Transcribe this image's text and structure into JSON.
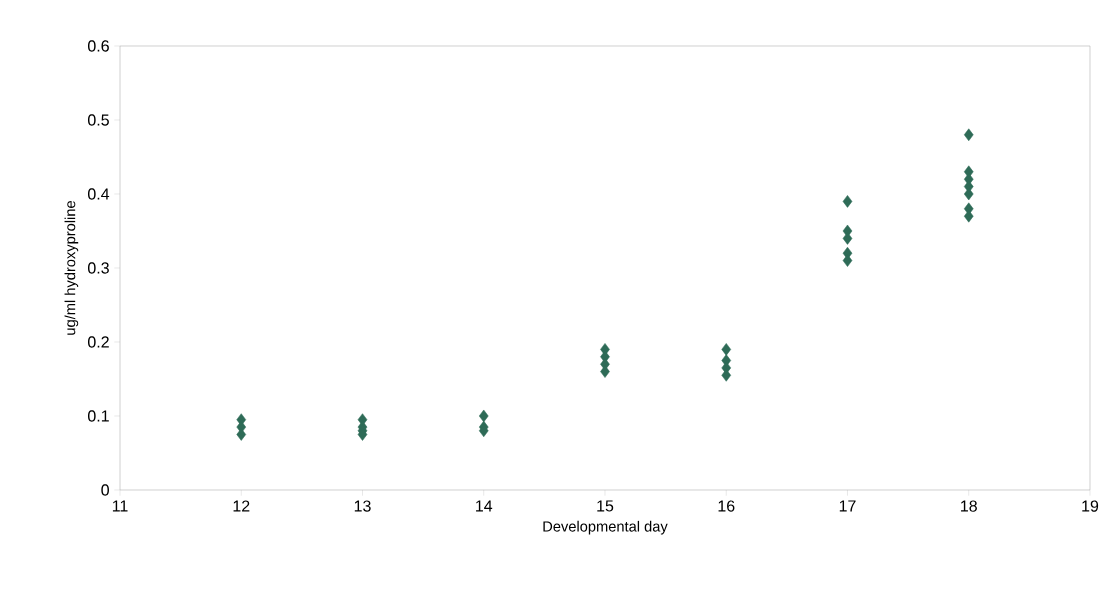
{
  "chart_data": {
    "type": "scatter",
    "xlabel": "Developmental day",
    "ylabel": "ug/ml hydroxyproline",
    "marker": "diamond",
    "grid": false,
    "x": [
      12,
      12,
      12,
      13,
      13,
      13,
      13,
      14,
      14,
      14,
      15,
      15,
      15,
      15,
      16,
      16,
      16,
      16,
      17,
      17,
      17,
      17,
      17,
      18,
      18,
      18,
      18,
      18,
      18,
      18
    ],
    "values": [
      0.095,
      0.085,
      0.075,
      0.095,
      0.085,
      0.08,
      0.075,
      0.1,
      0.085,
      0.08,
      0.19,
      0.18,
      0.17,
      0.16,
      0.19,
      0.175,
      0.165,
      0.155,
      0.39,
      0.35,
      0.34,
      0.32,
      0.31,
      0.48,
      0.43,
      0.42,
      0.41,
      0.4,
      0.38,
      0.37
    ],
    "color": "#2e6b57",
    "xlim": [
      11,
      19
    ],
    "xticks": [
      11,
      12,
      13,
      14,
      15,
      16,
      17,
      18,
      19
    ],
    "ylim": [
      0,
      0.6
    ],
    "yticks": [
      0,
      0.1,
      0.2,
      0.3,
      0.4,
      0.5,
      0.6
    ]
  }
}
